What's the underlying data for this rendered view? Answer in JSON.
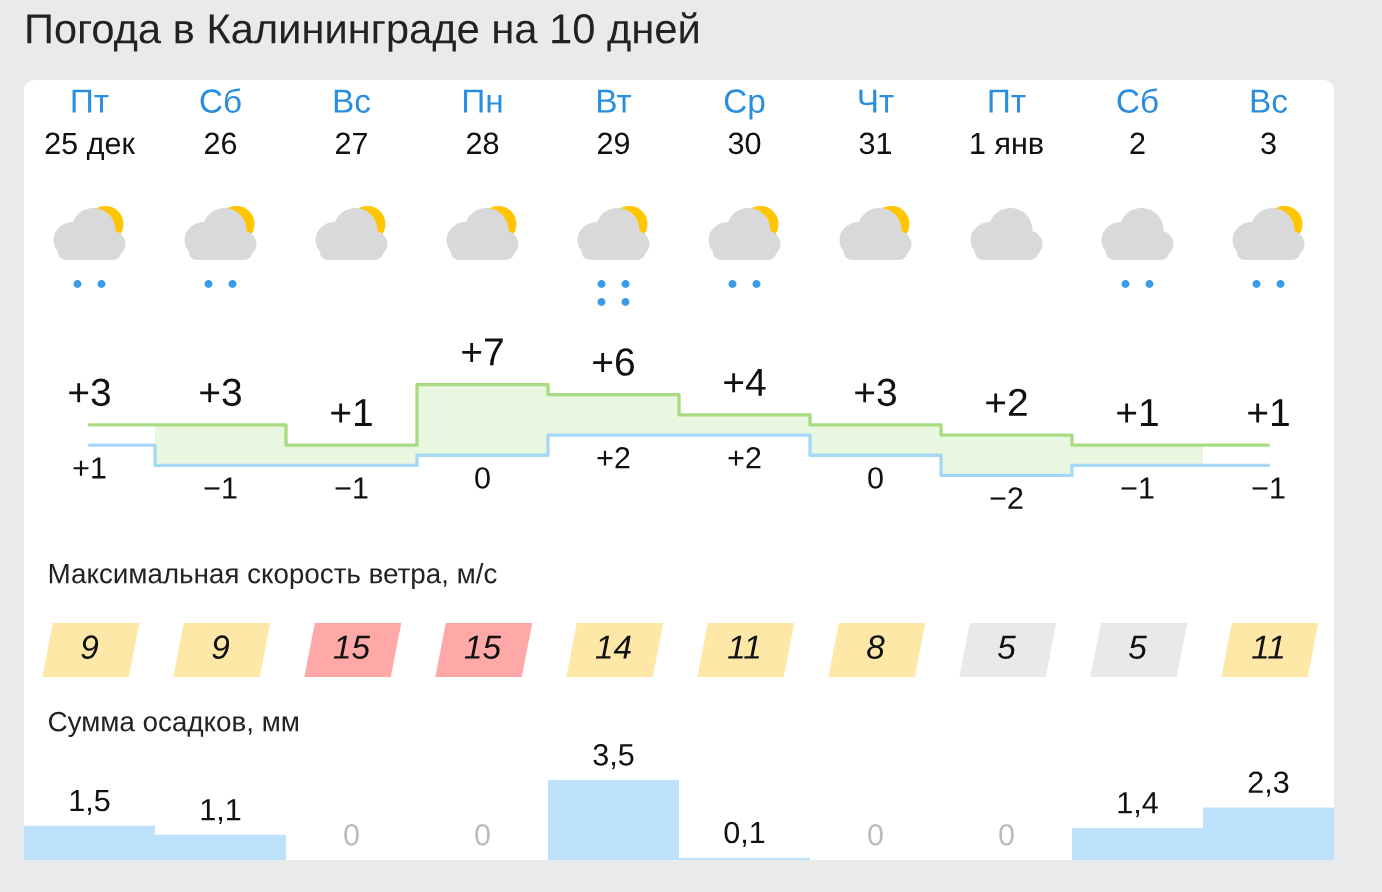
{
  "chart_data": [
    {
      "type": "step",
      "title": "Погода в Калининграде на 10 дней",
      "categories": [
        "Пт\n25 дек",
        "Сб\n26",
        "Вс\n27",
        "Пн\n28",
        "Вт\n29",
        "Ср\n30",
        "Чт\n31",
        "Пт\n1 янв",
        "Сб\n2",
        "Вс\n3"
      ],
      "series": [
        {
          "color": "#a9dc82",
          "values": [
            3,
            3,
            1,
            7,
            6,
            4,
            3,
            2,
            1,
            1
          ],
          "value_labels": [
            "+3",
            "+3",
            "+1",
            "+7",
            "+6",
            "+4",
            "+3",
            "+2",
            "+1",
            "+1"
          ]
        },
        {
          "color": "#a6d8f5",
          "values": [
            1,
            -1,
            -1,
            0,
            2,
            2,
            0,
            -2,
            -1,
            -1
          ],
          "value_labels": [
            "+1",
            "−1",
            "−1",
            "0",
            "+2",
            "+2",
            "0",
            "−2",
            "−1",
            "−1"
          ]
        }
      ]
    },
    {
      "type": "other",
      "title": "Максимальная скорость ветра, м/с",
      "categories": [
        null,
        null,
        null,
        null,
        null,
        null,
        null,
        null,
        null,
        null
      ],
      "values": [
        9,
        9,
        15,
        15,
        14,
        11,
        8,
        5,
        5,
        11
      ],
      "colors": [
        "#fde8a8",
        "#fde8a8",
        "#ffa8a8",
        "#ffa8a8",
        "#fde8a8",
        "#fde8a8",
        "#fde8a8",
        "#e8e9eb",
        "#e8e9eb",
        "#fde8a8"
      ],
      "data_labels": true
    },
    {
      "type": "bar",
      "title": "Сумма осадков, мм",
      "categories": [
        null,
        null,
        null,
        null,
        null,
        null,
        null,
        null,
        null,
        null
      ],
      "values": [
        1.5,
        1.1,
        0,
        0,
        3.5,
        0.1,
        0,
        0,
        1.4,
        2.3
      ],
      "value_labels": [
        "1,5",
        "1,1",
        "0",
        "0",
        "3,5",
        "0,1",
        "0",
        "0",
        "1,4",
        "2,3"
      ],
      "color": "#bde0fb"
    }
  ]
}
